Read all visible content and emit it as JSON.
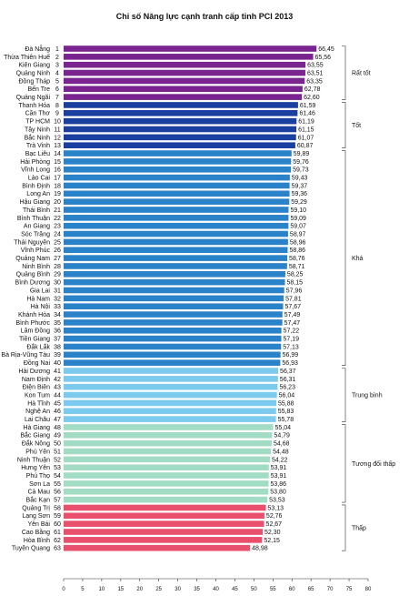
{
  "chart_data": {
    "type": "bar",
    "orientation": "horizontal",
    "title": "Chỉ số Năng lực cạnh tranh cấp tỉnh PCI 2013",
    "xlim": [
      0,
      80
    ],
    "xticks": [
      0,
      5,
      10,
      15,
      20,
      25,
      30,
      35,
      40,
      45,
      50,
      55,
      60,
      65,
      70,
      75,
      80
    ],
    "grid": false,
    "categories": [
      "Đà Nẵng",
      "Thừa Thiên Huế",
      "Kiên Giang",
      "Quảng Ninh",
      "Đồng Tháp",
      "Bến Tre",
      "Quảng Ngãi",
      "Thanh Hóa",
      "Cần Thơ",
      "TP HCM",
      "Tây Ninh",
      "Bắc Ninh",
      "Trà Vinh",
      "Bạc Liêu",
      "Hải Phòng",
      "Vĩnh Long",
      "Lào Cai",
      "Bình Định",
      "Long An",
      "Hậu Giang",
      "Thái Bình",
      "Bình Thuận",
      "An Giang",
      "Sóc Trăng",
      "Thái Nguyên",
      "Vĩnh Phúc",
      "Quảng Nam",
      "Ninh Bình",
      "Quảng Bình",
      "Bình Dương",
      "Gia Lai",
      "Hà Nam",
      "Hà Nội",
      "Khánh Hòa",
      "Bình Phước",
      "Lâm Đồng",
      "Tiền Giang",
      "Đắk Lắk",
      "Bà Rịa-Vũng Tàu",
      "Đồng Nai",
      "Hải Dương",
      "Nam Định",
      "Điện Biên",
      "Kon Tum",
      "Hà Tĩnh",
      "Nghệ An",
      "Lai Châu",
      "Hà Giang",
      "Bắc Giang",
      "Đắk Nông",
      "Phú Yên",
      "Ninh Thuận",
      "Hưng Yên",
      "Phú Thọ",
      "Sơn La",
      "Cà Mau",
      "Bắc Kạn",
      "Quảng Trị",
      "Lạng Sơn",
      "Yên Bái",
      "Cao Bằng",
      "Hòa Bình",
      "Tuyên Quang"
    ],
    "ranks": [
      "1",
      "2",
      "3",
      "4",
      "5",
      "6",
      "7",
      "8",
      "9",
      "10",
      "11",
      "12",
      "13",
      "14",
      "15",
      "16",
      "17",
      "18",
      "19",
      "20",
      "21",
      "22",
      "23",
      "24",
      "25",
      "26",
      "27",
      "28",
      "29",
      "30",
      "31",
      "32",
      "33",
      "34",
      "35",
      "36",
      "37",
      "38",
      "39",
      "40",
      "41",
      "42",
      "43",
      "44",
      "45",
      "46",
      "47",
      "48",
      "49",
      "50",
      "51",
      "52",
      "53",
      "54",
      "55",
      "56",
      "57",
      "58",
      "59",
      "60",
      "61",
      "62",
      "63"
    ],
    "values": [
      66.45,
      65.56,
      63.55,
      63.51,
      63.35,
      62.78,
      62.6,
      61.59,
      61.46,
      61.19,
      61.15,
      61.07,
      60.87,
      59.89,
      59.76,
      59.73,
      59.43,
      59.37,
      59.36,
      59.29,
      59.1,
      59.09,
      59.07,
      58.97,
      58.96,
      58.86,
      58.76,
      58.71,
      58.25,
      58.15,
      57.96,
      57.81,
      57.67,
      57.49,
      57.47,
      57.22,
      57.19,
      57.13,
      56.99,
      56.93,
      56.37,
      56.31,
      56.23,
      56.04,
      55.88,
      55.83,
      55.78,
      55.04,
      54.79,
      54.68,
      54.48,
      54.22,
      53.91,
      53.91,
      53.86,
      53.8,
      53.53,
      53.13,
      52.76,
      52.67,
      52.3,
      52.15,
      48.98
    ],
    "value_labels": [
      "66,45",
      "65,56",
      "63,55",
      "63,51",
      "63,35",
      "62,78",
      "62,60",
      "61,59",
      "61,46",
      "61,19",
      "61,15",
      "61,07",
      "60,87",
      "59,89",
      "59,76",
      "59,73",
      "59,43",
      "59,37",
      "59,36",
      "59,29",
      "59,10",
      "59,09",
      "59,07",
      "58,97",
      "58,96",
      "58,86",
      "58,76",
      "58,71",
      "58,25",
      "58,15",
      "57,96",
      "57,81",
      "57,67",
      "57,49",
      "57,47",
      "57,22",
      "57,19",
      "57,13",
      "56,99",
      "56,93",
      "56,37",
      "56,31",
      "56,23",
      "56,04",
      "55,88",
      "55,83",
      "55,78",
      "55,04",
      "54,79",
      "54,68",
      "54,48",
      "54,22",
      "53,91",
      "53,91",
      "53,86",
      "53,80",
      "53,53",
      "53,13",
      "52,76",
      "52,67",
      "52,30",
      "52,15",
      "48,98"
    ],
    "groups": [
      {
        "label": "Rất tốt",
        "start": 0,
        "end": 6,
        "color": "#7a2490"
      },
      {
        "label": "Tốt",
        "start": 7,
        "end": 12,
        "color": "#1a3f9e"
      },
      {
        "label": "Khá",
        "start": 13,
        "end": 39,
        "color": "#2a82c8"
      },
      {
        "label": "Trung bình",
        "start": 40,
        "end": 46,
        "color": "#7ccbee"
      },
      {
        "label": "Tương đối thấp",
        "start": 47,
        "end": 56,
        "color": "#a3dcc4"
      },
      {
        "label": "Thấp",
        "start": 57,
        "end": 62,
        "color": "#e8506d"
      }
    ]
  }
}
